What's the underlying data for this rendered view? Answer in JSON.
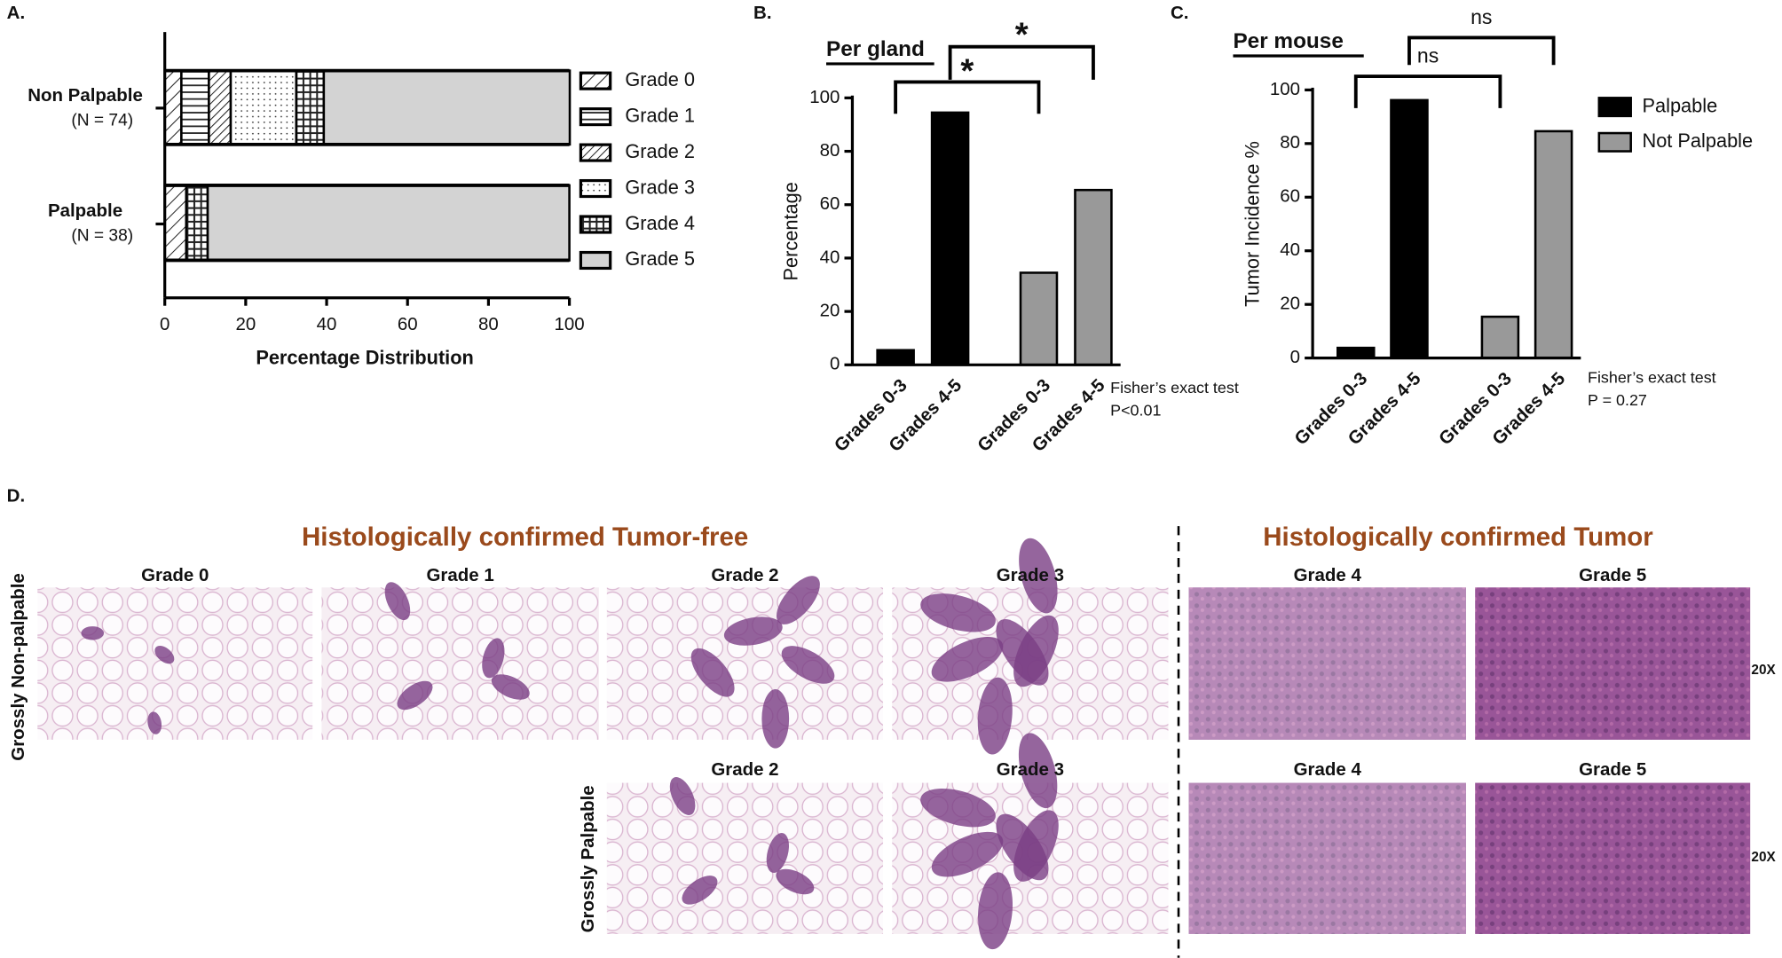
{
  "chart_data": [
    {
      "type": "bar",
      "orientation": "horizontal",
      "stacked": true,
      "panel_label": "A.",
      "categories": [
        "Non Palpable",
        "Palpable"
      ],
      "category_notes": [
        "(N = 74)",
        "(N = 38)"
      ],
      "series": [
        {
          "name": "Grade 0",
          "color": "#ffffff",
          "pattern": "diagonal-wide",
          "values": [
            4.1,
            5.3
          ]
        },
        {
          "name": "Grade 1",
          "color": "#ffffff",
          "pattern": "horizontal",
          "values": [
            6.8,
            0
          ]
        },
        {
          "name": "Grade 2",
          "color": "#ffffff",
          "pattern": "diagonal-dense",
          "values": [
            5.4,
            0
          ]
        },
        {
          "name": "Grade 3",
          "color": "#ffffff",
          "pattern": "dots",
          "values": [
            16.2,
            0
          ]
        },
        {
          "name": "Grade 4",
          "color": "#ffffff",
          "pattern": "grid",
          "values": [
            6.8,
            5.3
          ]
        },
        {
          "name": "Grade 5",
          "color": "#d3d3d3",
          "pattern": "none",
          "values": [
            60.8,
            89.4
          ]
        }
      ],
      "xlim": [
        0,
        100
      ],
      "xticks": [
        0,
        20,
        40,
        60,
        80,
        100
      ],
      "xlabel": "Percentage  Distribution"
    },
    {
      "type": "bar",
      "panel_label": "B.",
      "title": "Per gland",
      "ylabel": "Percentage",
      "categories": [
        "Grades 0-3",
        "Grades 4-5",
        "Grades 0-3",
        "Grades 4-5"
      ],
      "values": [
        5.5,
        94.5,
        34.5,
        65.5
      ],
      "colors": [
        "#000000",
        "#000000",
        "#999999",
        "#999999"
      ],
      "ylim": [
        0,
        100
      ],
      "yticks": [
        0,
        20,
        40,
        60,
        80,
        100
      ],
      "annotations": [
        "*",
        "*"
      ],
      "notes": [
        "Fisher’s exact test",
        "P<0.01"
      ]
    },
    {
      "type": "bar",
      "panel_label": "C.",
      "title": "Per mouse",
      "ylabel": "Tumor Incidence %",
      "categories": [
        "Grades 0-3",
        "Grades 4-5",
        "Grades 0-3",
        "Grades 4-5"
      ],
      "series": [
        {
          "name": "Palpable",
          "color": "#000000",
          "values": [
            3.8,
            96.2,
            null,
            null
          ]
        },
        {
          "name": "Not Palpable",
          "color": "#999999",
          "values": [
            null,
            null,
            15.4,
            84.6
          ]
        }
      ],
      "ylim": [
        0,
        100
      ],
      "yticks": [
        0,
        20,
        40,
        60,
        80,
        100
      ],
      "annotations": [
        "ns",
        "ns"
      ],
      "notes": [
        "Fisher’s exact test",
        "P = 0.27"
      ]
    }
  ],
  "panel_d": {
    "panel_label": "D.",
    "heading_left": "Histologically confirmed Tumor-free",
    "heading_right": "Histologically confirmed Tumor",
    "row1": {
      "label": "Grossly Non-palpable",
      "grades": [
        "Grade 0",
        "Grade 1",
        "Grade 2",
        "Grade 3",
        "Grade 4",
        "Grade 5"
      ],
      "magnification": "20X"
    },
    "row2": {
      "label": "Grossly Palpable",
      "grades": [
        "Grade 2",
        "Grade 3",
        "Grade 4",
        "Grade 5"
      ],
      "magnification": "20X"
    }
  }
}
